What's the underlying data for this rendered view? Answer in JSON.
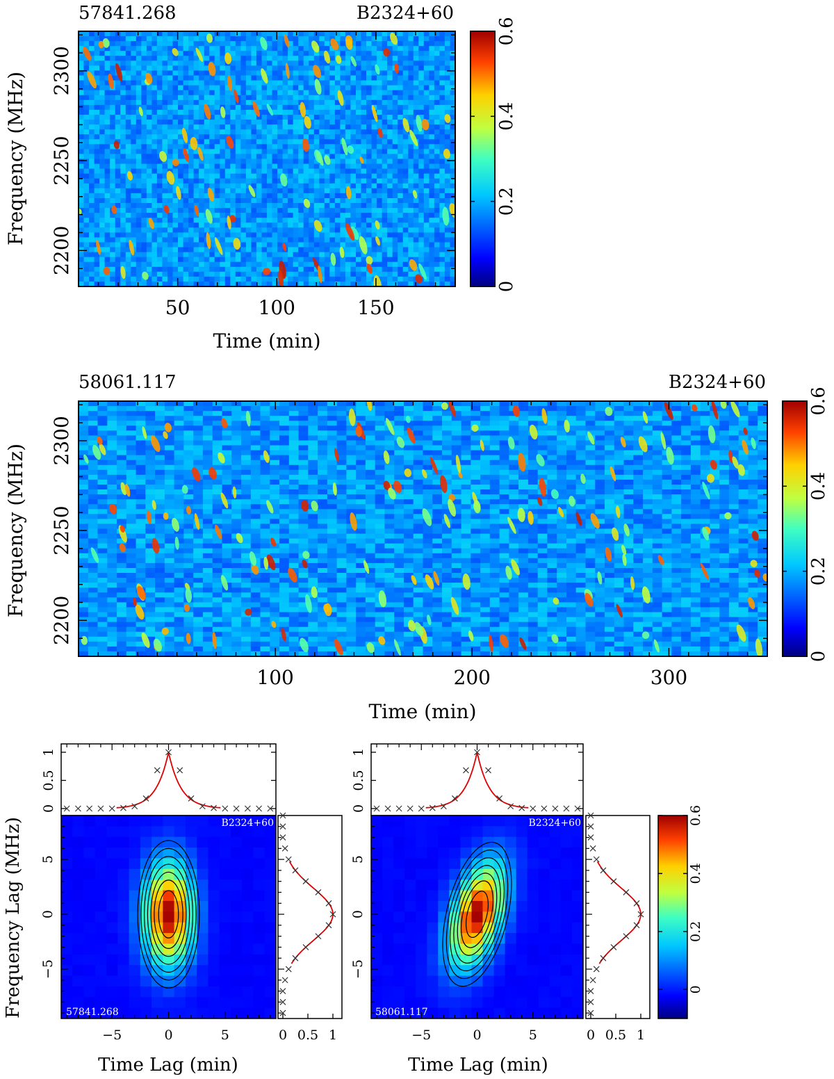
{
  "chart_data": [
    {
      "type": "heatmap",
      "id": "dynspec1",
      "title_left": "57841.268",
      "title_right": "B2324+60",
      "xlabel": "Time (min)",
      "ylabel": "Frequency (MHz)",
      "xlim": [
        0,
        190
      ],
      "ylim": [
        2180,
        2322
      ],
      "xticks": [
        50,
        100,
        150
      ],
      "yticks": [
        2200,
        2250,
        2300
      ],
      "colorbar": {
        "min": 0,
        "max": 0.6,
        "ticks": [
          "0",
          "0.2",
          "0.4",
          "0.6"
        ]
      }
    },
    {
      "type": "heatmap",
      "id": "dynspec2",
      "title_left": "58061.117",
      "title_right": "B2324+60",
      "xlabel": "Time (min)",
      "ylabel": "Frequency (MHz)",
      "xlim": [
        0,
        350
      ],
      "ylim": [
        2180,
        2322
      ],
      "xticks": [
        100,
        200,
        300
      ],
      "yticks": [
        2200,
        2250,
        2300
      ],
      "colorbar": {
        "min": 0,
        "max": 0.6,
        "ticks": [
          "0",
          "0.2",
          "0.4",
          "0.6"
        ]
      }
    },
    {
      "type": "heatmap",
      "id": "acf1",
      "label": "B2324+60",
      "epoch": "57841.268",
      "xlabel": "Time Lag (min)",
      "ylabel": "Frequency Lag (MHz)",
      "xlim": [
        -9.5,
        9.5
      ],
      "ylim": [
        -9.5,
        9
      ],
      "xticks": [
        -5,
        0,
        5
      ],
      "yticks": [
        -5,
        0,
        5
      ],
      "time_cut": {
        "x": [
          -9,
          -8,
          -7,
          -6,
          -5,
          -4,
          -3,
          -2,
          -1,
          0,
          1,
          2,
          3,
          4,
          5,
          6,
          7,
          8,
          9
        ],
        "markers": [
          0,
          0,
          0,
          0,
          0,
          0.01,
          0.04,
          0.18,
          0.68,
          1.0,
          0.68,
          0.18,
          0.04,
          0.01,
          0,
          0,
          0,
          0,
          0
        ],
        "yticks": [
          "0",
          "0.5",
          "1"
        ]
      },
      "freq_cut": {
        "center": 0,
        "width_mhz": 2.4,
        "xticks": [
          "0",
          "0.5",
          "1"
        ]
      }
    },
    {
      "type": "heatmap",
      "id": "acf2",
      "label": "B2324+60",
      "epoch": "58061.117",
      "xlabel": "Time Lag (min)",
      "xlim": [
        -9.5,
        9.5
      ],
      "ylim": [
        -9.5,
        9
      ],
      "xticks": [
        -5,
        0,
        5
      ],
      "yticks": [
        -5,
        0,
        5
      ],
      "time_cut": {
        "x": [
          -9,
          -8,
          -7,
          -6,
          -5,
          -4,
          -3,
          -2,
          -1,
          0,
          1,
          2,
          3,
          4,
          5,
          6,
          7,
          8,
          9
        ],
        "markers": [
          0,
          0,
          0,
          0,
          0,
          0.01,
          0.04,
          0.18,
          0.68,
          1.0,
          0.68,
          0.18,
          0.04,
          0.01,
          0,
          0,
          0,
          0,
          0
        ],
        "yticks": [
          "0",
          "0.5",
          "1"
        ]
      },
      "freq_cut": {
        "center": 0,
        "width_mhz": 2.4,
        "xticks": [
          "0",
          "0.5",
          "1"
        ]
      },
      "colorbar": {
        "min": -0.1,
        "max": 0.6,
        "ticks": [
          "0",
          "0.2",
          "0.4",
          "0.6"
        ]
      }
    }
  ]
}
